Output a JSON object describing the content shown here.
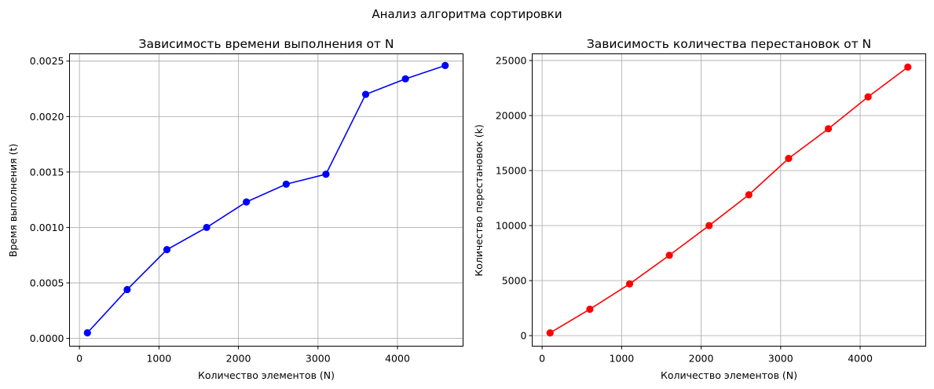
{
  "figure": {
    "suptitle": "Анализ алгоритма сортировки"
  },
  "chart_data": [
    {
      "type": "line",
      "title": "Зависимость времени выполнения от N",
      "xlabel": "Количество элементов (N)",
      "ylabel": "Время выполнения (t)",
      "x": [
        100,
        600,
        1100,
        1600,
        2100,
        2600,
        3100,
        3600,
        4100,
        4600
      ],
      "series": [
        {
          "values": [
            5e-05,
            0.00044,
            0.0008,
            0.001,
            0.00123,
            0.00139,
            0.00148,
            0.0022,
            0.00234,
            0.00246
          ],
          "color": "#0000ff",
          "marker": "circle"
        }
      ],
      "xlim": [
        -125,
        4825
      ],
      "ylim": [
        -7.05e-05,
        0.0025655
      ],
      "xticks": [
        0,
        1000,
        2000,
        3000,
        4000
      ],
      "xtick_labels": [
        "0",
        "1000",
        "2000",
        "3000",
        "4000"
      ],
      "yticks": [
        0.0,
        0.0005,
        0.001,
        0.0015,
        0.002,
        0.0025
      ],
      "ytick_labels": [
        "0.0000",
        "0.0005",
        "0.0010",
        "0.0015",
        "0.0020",
        "0.0025"
      ],
      "grid": true
    },
    {
      "type": "line",
      "title": "Зависимость количества перестановок от N",
      "xlabel": "Количество элементов (N)",
      "ylabel": "Количество перестановок (k)",
      "x": [
        100,
        600,
        1100,
        1600,
        2100,
        2600,
        3100,
        3600,
        4100,
        4600
      ],
      "series": [
        {
          "values": [
            250,
            2400,
            4700,
            7300,
            10000,
            12800,
            16100,
            18800,
            21700,
            24400
          ],
          "color": "#ff0000",
          "marker": "circle"
        }
      ],
      "xlim": [
        -125,
        4825
      ],
      "ylim": [
        -957.5,
        25607.5
      ],
      "xticks": [
        0,
        1000,
        2000,
        3000,
        4000
      ],
      "xtick_labels": [
        "0",
        "1000",
        "2000",
        "3000",
        "4000"
      ],
      "yticks": [
        0,
        5000,
        10000,
        15000,
        20000,
        25000
      ],
      "ytick_labels": [
        "0",
        "5000",
        "10000",
        "15000",
        "20000",
        "25000"
      ],
      "grid": true
    }
  ]
}
